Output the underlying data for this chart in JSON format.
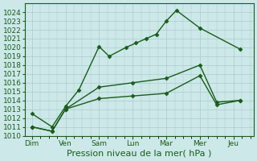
{
  "x_labels": [
    "Dim",
    "Ven",
    "Sam",
    "Lun",
    "Mar",
    "Mer",
    "Jeu"
  ],
  "line1": {
    "x": [
      0,
      0.6,
      1.0,
      1.4,
      2.0,
      2.3,
      2.8,
      3.1,
      3.4,
      3.7,
      4.0,
      4.3,
      5.0,
      6.2
    ],
    "y": [
      1012.5,
      1011.0,
      1013.3,
      1015.2,
      1020.1,
      1019.0,
      1020.0,
      1020.5,
      1021.0,
      1021.5,
      1023.0,
      1024.2,
      1022.2,
      1019.8
    ],
    "color": "#1a5c1a",
    "marker": "D",
    "markersize": 2.5,
    "linewidth": 1.0
  },
  "line2": {
    "x": [
      0,
      0.6,
      1.0,
      2.0,
      3.0,
      4.0,
      5.0,
      5.5,
      6.2
    ],
    "y": [
      1011.0,
      1010.5,
      1013.0,
      1015.5,
      1016.0,
      1016.5,
      1018.0,
      1013.8,
      1014.0
    ],
    "color": "#1a5c1a",
    "marker": "D",
    "markersize": 2.5,
    "linewidth": 1.0
  },
  "line3": {
    "x": [
      0,
      0.6,
      1.0,
      2.0,
      3.0,
      4.0,
      5.0,
      5.5,
      6.2
    ],
    "y": [
      1011.0,
      1010.5,
      1013.0,
      1014.2,
      1014.5,
      1014.8,
      1016.8,
      1013.5,
      1014.0
    ],
    "color": "#1a5c1a",
    "marker": "D",
    "markersize": 2.5,
    "linewidth": 1.0
  },
  "xlabel_text": "Pression niveau de la mer( hPa )",
  "ylim": [
    1010,
    1025
  ],
  "yticks": [
    1010,
    1011,
    1012,
    1013,
    1014,
    1015,
    1016,
    1017,
    1018,
    1019,
    1020,
    1021,
    1022,
    1023,
    1024
  ],
  "xtick_positions": [
    0,
    1.0,
    2.0,
    3.0,
    4.0,
    5.0,
    6.0
  ],
  "bg_color": "#cce8e8",
  "grid_color": "#aacccc",
  "line_color": "#1a5c1a",
  "xlabel_fontsize": 8,
  "tick_fontsize": 6.5
}
